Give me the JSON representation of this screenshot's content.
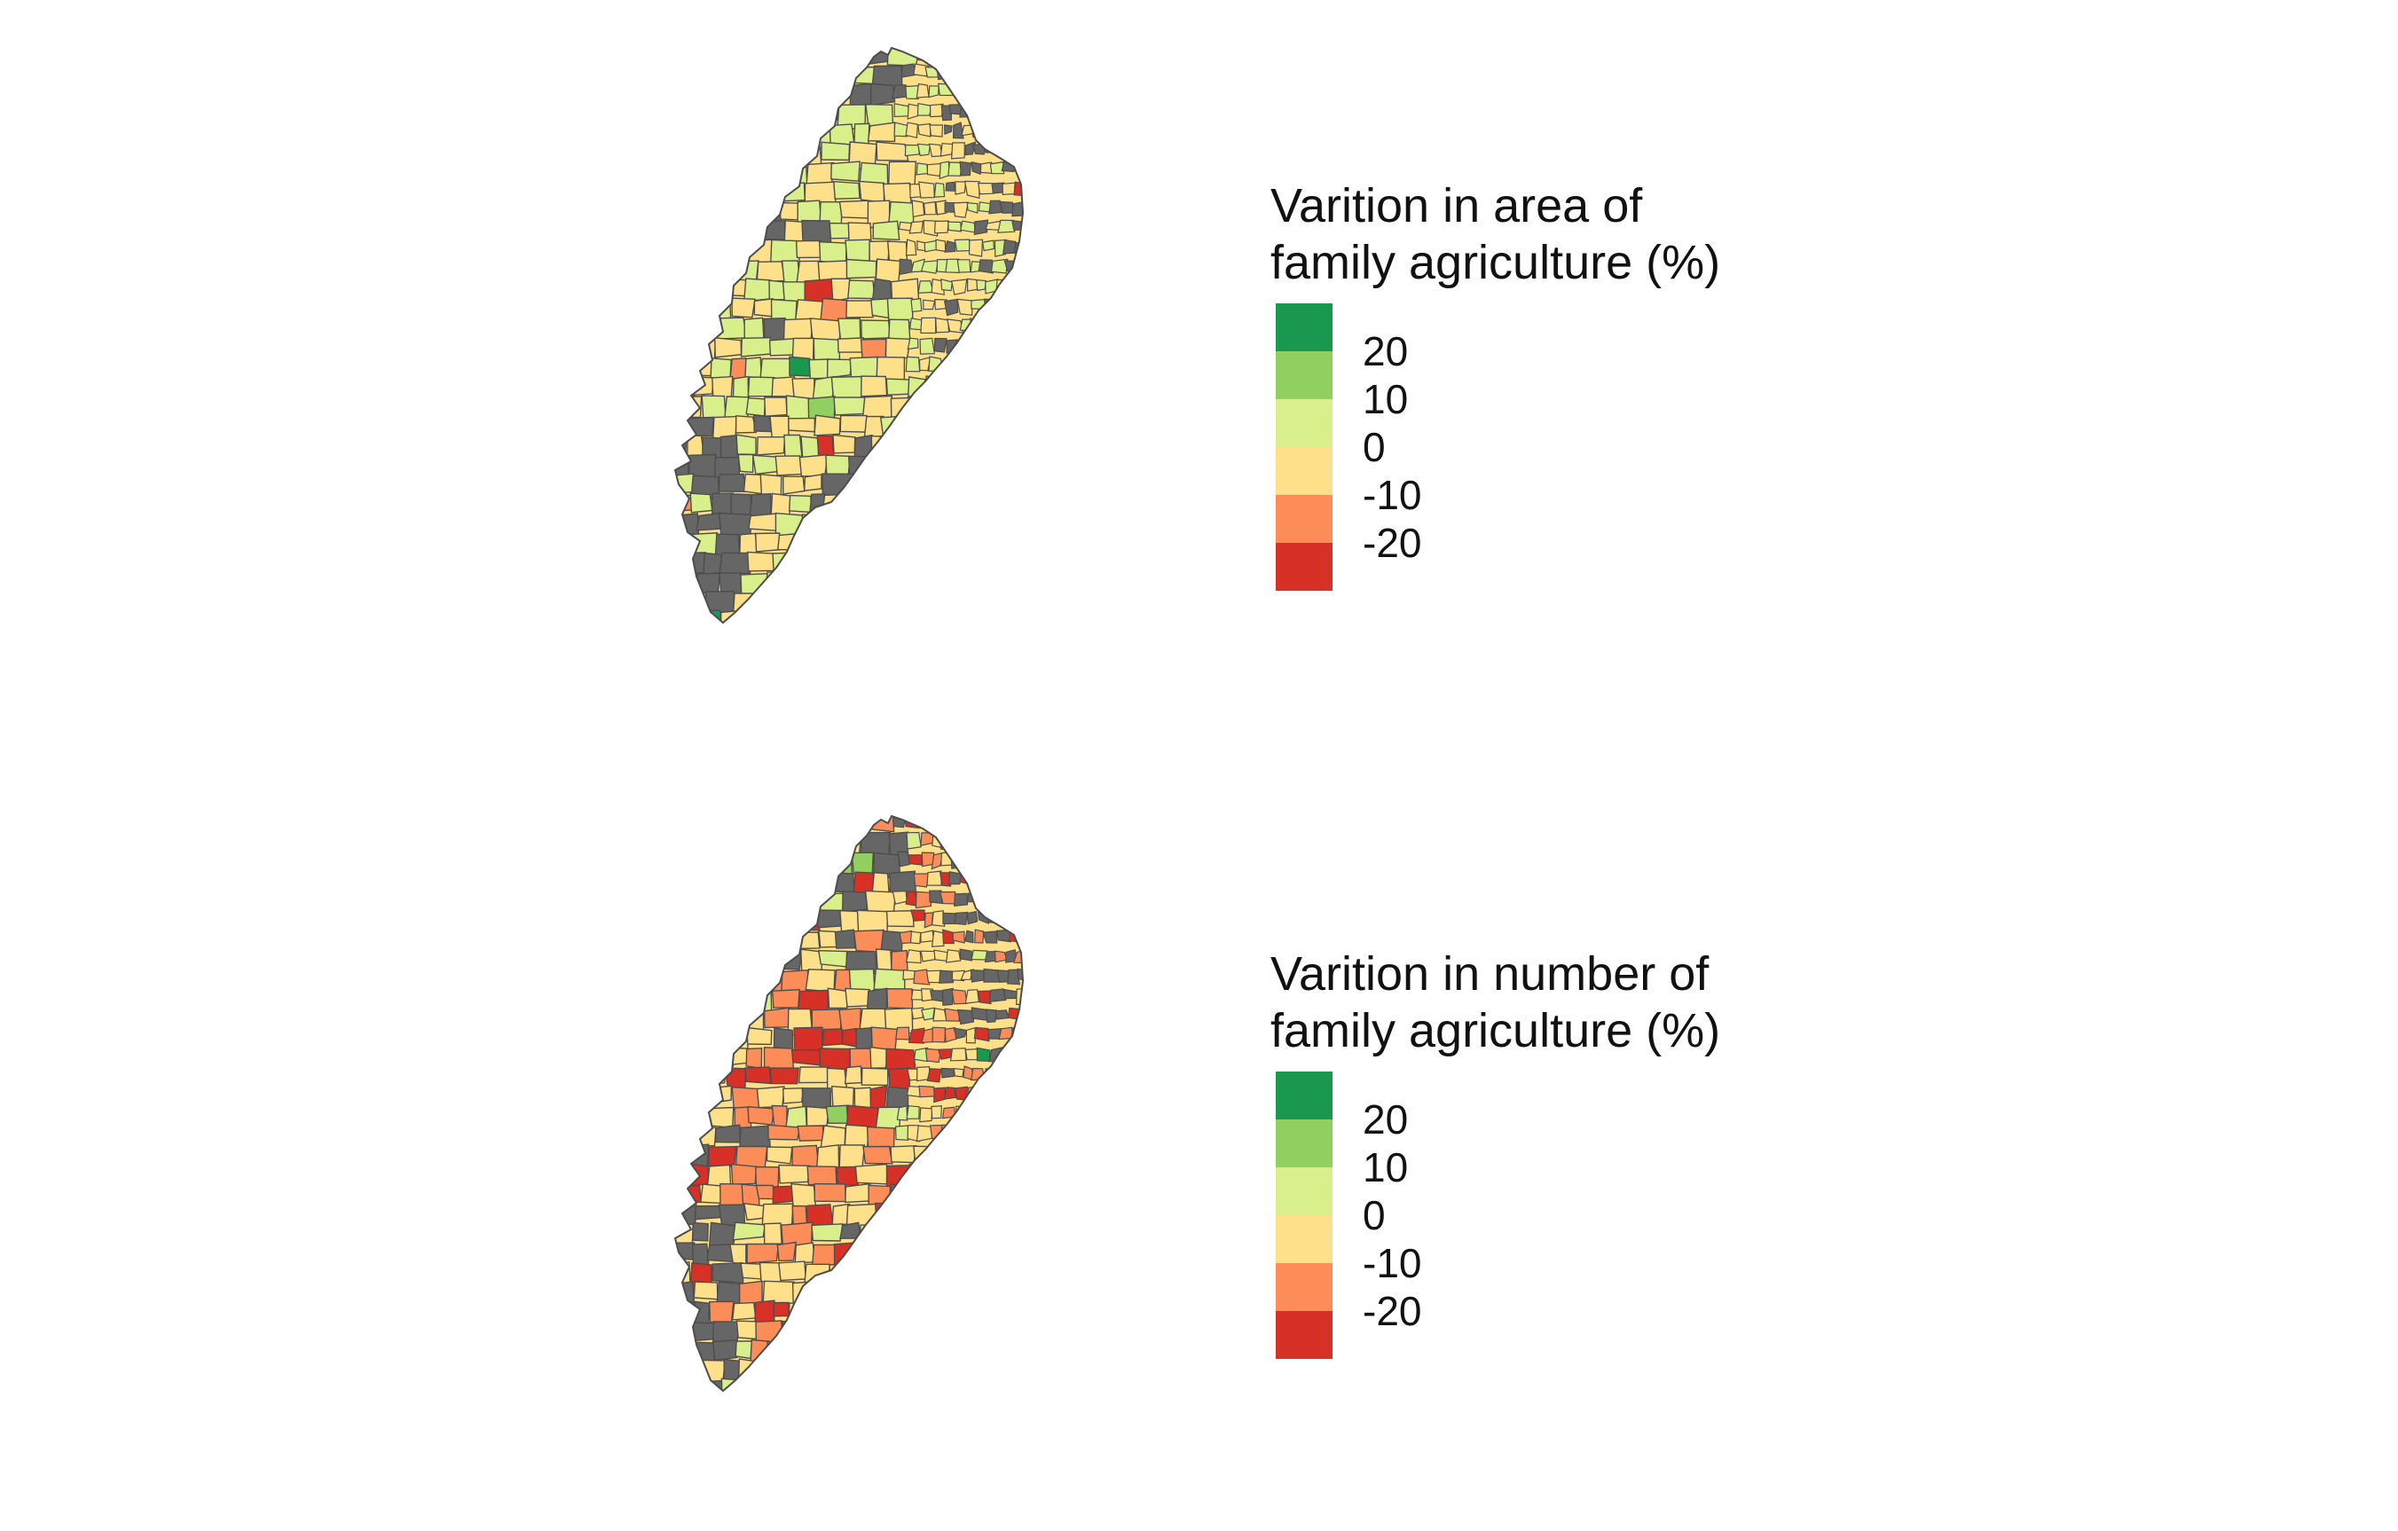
{
  "palette": {
    "no_data": "#666666",
    "border": "#4d4d4d",
    "bins": [
      "#1a9850",
      "#91cf60",
      "#d9ef8b",
      "#fee08b",
      "#fc8d59",
      "#d73027"
    ]
  },
  "maps": [
    {
      "variable": "area",
      "legend": {
        "title_line1": "Varition in area of",
        "title_line2": "family agriculture (%)",
        "ticks": [
          "20",
          "10",
          "0",
          "-10",
          "-20"
        ]
      },
      "class_shares": {
        "no_data": 0.09,
        "gt_20": 0.003,
        "10_20": 0.012,
        "0_10": 0.42,
        "m10_0": 0.43,
        "m20_m10": 0.03,
        "lt_m20": 0.015
      }
    },
    {
      "variable": "number",
      "legend": {
        "title_line1": "Varition in number of",
        "title_line2": "family agriculture (%)",
        "ticks": [
          "20",
          "10",
          "0",
          "-10",
          "-20"
        ]
      },
      "class_shares": {
        "no_data": 0.09,
        "gt_20": 0.004,
        "10_20": 0.01,
        "0_10": 0.12,
        "m10_0": 0.36,
        "m20_m10": 0.28,
        "lt_m20": 0.14
      }
    }
  ]
}
